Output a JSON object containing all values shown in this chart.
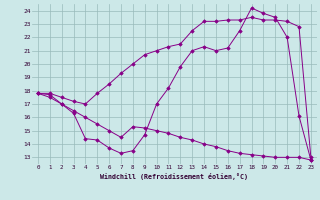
{
  "xlabel": "Windchill (Refroidissement éolien,°C)",
  "bg_color": "#cce8e8",
  "line_color": "#880088",
  "grid_color": "#99bbbb",
  "xlim": [
    -0.5,
    23.5
  ],
  "ylim": [
    12.5,
    24.5
  ],
  "xticks": [
    0,
    1,
    2,
    3,
    4,
    5,
    6,
    7,
    8,
    9,
    10,
    11,
    12,
    13,
    14,
    15,
    16,
    17,
    18,
    19,
    20,
    21,
    22,
    23
  ],
  "yticks": [
    13,
    14,
    15,
    16,
    17,
    18,
    19,
    20,
    21,
    22,
    23,
    24
  ],
  "series": [
    {
      "x": [
        0,
        1,
        2,
        3,
        4,
        5,
        6,
        7,
        8,
        9,
        10,
        11,
        12,
        13,
        14,
        15,
        16,
        17,
        18,
        19,
        20,
        21,
        22,
        23
      ],
      "y": [
        17.8,
        17.7,
        17.0,
        16.3,
        14.4,
        14.3,
        13.7,
        13.3,
        13.5,
        14.7,
        17.0,
        18.2,
        19.8,
        21.0,
        21.3,
        21.0,
        21.2,
        22.5,
        24.2,
        23.8,
        23.5,
        22.0,
        16.1,
        12.8
      ]
    },
    {
      "x": [
        0,
        1,
        2,
        3,
        4,
        5,
        6,
        7,
        8,
        9,
        10,
        11,
        12,
        13,
        14,
        15,
        16,
        17,
        18,
        19,
        20,
        21,
        22,
        23
      ],
      "y": [
        17.8,
        17.8,
        17.5,
        17.2,
        17.0,
        17.8,
        18.5,
        19.3,
        20.0,
        20.7,
        21.0,
        21.3,
        21.5,
        22.5,
        23.2,
        23.2,
        23.3,
        23.3,
        23.5,
        23.3,
        23.3,
        23.2,
        22.8,
        13.0
      ]
    },
    {
      "x": [
        0,
        1,
        2,
        3,
        4,
        5,
        6,
        7,
        8,
        9,
        10,
        11,
        12,
        13,
        14,
        15,
        16,
        17,
        18,
        19,
        20,
        21,
        22,
        23
      ],
      "y": [
        17.8,
        17.5,
        17.0,
        16.5,
        16.0,
        15.5,
        15.0,
        14.5,
        15.3,
        15.2,
        15.0,
        14.8,
        14.5,
        14.3,
        14.0,
        13.8,
        13.5,
        13.3,
        13.2,
        13.1,
        13.0,
        13.0,
        13.0,
        12.8
      ]
    }
  ]
}
